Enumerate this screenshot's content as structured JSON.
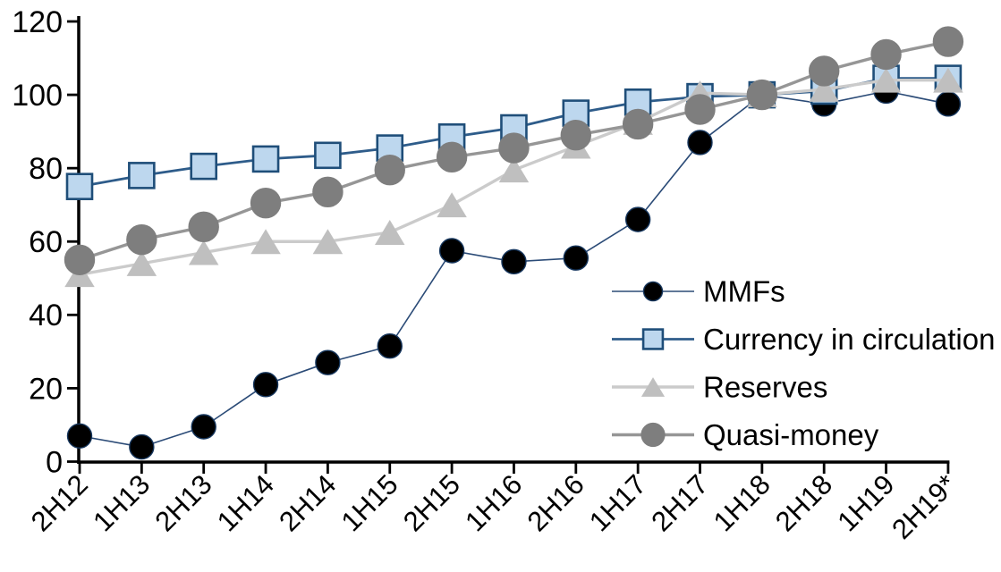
{
  "chart_data": {
    "type": "line",
    "title": "",
    "xlabel": "",
    "ylabel": "",
    "categories": [
      "2H12",
      "1H13",
      "2H13",
      "1H14",
      "2H14",
      "1H15",
      "2H15",
      "1H16",
      "2H16",
      "1H17",
      "2H17",
      "1H18",
      "2H18",
      "1H19",
      "2H19*"
    ],
    "series": [
      {
        "name": "MMFs",
        "marker": "circle",
        "marker_fill": "#000000",
        "marker_edge": "#16365D",
        "line_color": "#2B4B77",
        "line_width": 1.6,
        "marker_size": 27,
        "values": [
          7,
          4,
          9.5,
          21,
          27,
          31.5,
          57.5,
          54.5,
          55.5,
          66,
          87,
          100,
          97.5,
          101,
          97.5
        ]
      },
      {
        "name": "Currency in circulation",
        "marker": "square",
        "marker_fill": "#BDD7EE",
        "marker_edge": "#1F4E79",
        "line_color": "#2E5C8A",
        "line_width": 2.8,
        "marker_size": 28,
        "values": [
          75,
          78,
          80.5,
          82.5,
          83.5,
          85.5,
          88.5,
          91,
          95,
          98,
          99.5,
          100,
          101,
          104.5,
          104.5
        ]
      },
      {
        "name": "Reserves",
        "marker": "triangle",
        "marker_fill": "#BFBFBF",
        "marker_edge": "#BFBFBF",
        "line_color": "#CBCBCB",
        "line_width": 3.4,
        "marker_size": 31,
        "values": [
          51,
          54,
          57,
          60,
          60,
          62.5,
          70,
          79.5,
          86,
          92.5,
          100.5,
          100,
          101.5,
          104,
          104
        ]
      },
      {
        "name": "Quasi-money",
        "marker": "circle",
        "marker_fill": "#7E7E7E",
        "marker_edge": "#7E7E7E",
        "line_color": "#969696",
        "line_width": 3.4,
        "marker_size": 33,
        "values": [
          55,
          60.5,
          64,
          70.5,
          73.5,
          79.5,
          83,
          85.5,
          89,
          92,
          96,
          100,
          106.5,
          111,
          114.5
        ]
      }
    ],
    "ylim": [
      0,
      120
    ],
    "yticks": [
      0,
      20,
      40,
      60,
      80,
      100,
      120
    ],
    "grid": false,
    "axis_color": "#000000",
    "legend_position": "inside-right-middle",
    "legend_items": [
      "MMFs",
      "Currency in circulation",
      "Reserves",
      "Quasi-money"
    ]
  }
}
